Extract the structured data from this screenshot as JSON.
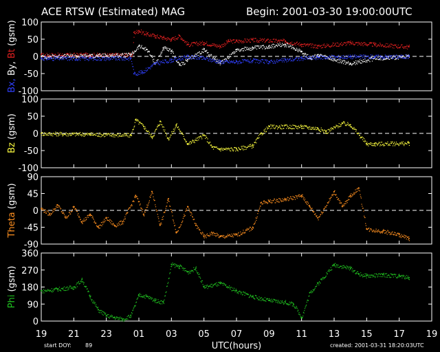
{
  "header": {
    "title": "ACE RTSW (Estimated) MAG",
    "begin": "Begin: 2001-03-30 19:00:00UTC"
  },
  "footer": {
    "start_doy_label": "start DOY:",
    "start_doy_value": "89",
    "created": "created: 2001-03-31 18:20:03UTC"
  },
  "colors": {
    "bx": "#3040ff",
    "by": "#ffffff",
    "bt": "#e02020",
    "bz": "#ffff40",
    "theta": "#ff9020",
    "phi": "#20c020",
    "axis": "#ffffff"
  },
  "chart_data": [
    {
      "type": "scatter",
      "panel": "B components",
      "ylabel": [
        "Bx,",
        "By,",
        "Bt",
        "(gsm)"
      ],
      "ylim": [
        -100,
        100
      ],
      "yticks": [
        "100",
        "50",
        "0",
        "-50",
        "-100"
      ],
      "ytick_values": [
        100,
        50,
        0,
        -50,
        -100
      ],
      "zero_dashed": true,
      "series": [
        {
          "key": "bt",
          "color_key": "bt",
          "x": [
            19,
            22,
            23.5,
            24.6,
            24.7,
            25.0,
            25.5,
            26.0,
            26.5,
            27.0,
            27.5,
            28.0,
            29.0,
            30.0,
            30.5,
            31.0,
            32.0,
            34.0,
            35.0,
            36.0,
            38.0,
            39.5,
            41.6
          ],
          "y": [
            5,
            5,
            5,
            5,
            70,
            75,
            65,
            60,
            55,
            50,
            60,
            35,
            40,
            30,
            45,
            45,
            48,
            45,
            35,
            30,
            40,
            35,
            28
          ]
        },
        {
          "key": "by",
          "color_key": "by",
          "x": [
            19,
            22,
            24.5,
            25.0,
            25.5,
            26.0,
            26.5,
            27.0,
            27.5,
            28.0,
            29.0,
            30.0,
            31.0,
            32.0,
            33.0,
            34.0,
            35.0,
            35.5,
            36.0,
            37.0,
            38.0,
            39.5,
            41.6
          ],
          "y": [
            0,
            2,
            5,
            30,
            20,
            -20,
            25,
            15,
            -25,
            -10,
            20,
            -20,
            20,
            25,
            30,
            35,
            15,
            -5,
            5,
            -10,
            -20,
            -5,
            0
          ]
        },
        {
          "key": "bx",
          "color_key": "bx",
          "x": [
            19,
            22,
            24.5,
            24.7,
            25.2,
            26.0,
            27.0,
            28.0,
            29.0,
            30.0,
            31.0,
            32.0,
            33.0,
            34.0,
            35.0,
            36.0,
            38.0,
            39.5,
            41.6
          ],
          "y": [
            -5,
            -5,
            -5,
            -50,
            -45,
            -20,
            -10,
            0,
            -5,
            -15,
            -15,
            -12,
            -15,
            -10,
            -5,
            -2,
            0,
            0,
            0
          ]
        }
      ]
    },
    {
      "type": "scatter",
      "panel": "Bz",
      "ylabel": [
        "Bz",
        "(gsm)"
      ],
      "ylim": [
        -100,
        100
      ],
      "yticks": [
        "100",
        "50",
        "0",
        "-50",
        "-100"
      ],
      "ytick_values": [
        100,
        50,
        0,
        -50,
        -100
      ],
      "zero_dashed": true,
      "series": [
        {
          "key": "bz",
          "color_key": "bz",
          "x": [
            19,
            22,
            24.5,
            24.8,
            25.3,
            25.8,
            26.3,
            26.8,
            27.3,
            28.0,
            29.0,
            29.5,
            30.0,
            31.0,
            32.0,
            32.5,
            33.0,
            35.0,
            36.0,
            36.5,
            37.5,
            38.0,
            39.0,
            39.5,
            41.6
          ],
          "y": [
            0,
            -2,
            -5,
            40,
            20,
            -10,
            35,
            -15,
            25,
            -30,
            -5,
            -40,
            -45,
            -45,
            -35,
            0,
            20,
            20,
            15,
            5,
            30,
            25,
            -30,
            -30,
            -28
          ]
        }
      ]
    },
    {
      "type": "scatter",
      "panel": "Theta",
      "ylabel": [
        "Theta",
        "(gsm)"
      ],
      "ylim": [
        -90,
        90
      ],
      "yticks": [
        "90",
        "45",
        "0",
        "-45",
        "-90"
      ],
      "ytick_values": [
        90,
        45,
        0,
        -45,
        -90
      ],
      "zero_dashed": true,
      "series": [
        {
          "key": "theta",
          "color_key": "theta",
          "x": [
            19,
            19.5,
            20.0,
            20.5,
            21.0,
            21.5,
            22.0,
            22.5,
            23.0,
            23.5,
            24.0,
            24.8,
            25.3,
            25.8,
            26.3,
            26.8,
            27.3,
            28.0,
            28.5,
            29.0,
            29.5,
            30.0,
            31.0,
            32.0,
            32.5,
            33.0,
            34.0,
            35.0,
            35.5,
            36.0,
            37.0,
            37.5,
            38.0,
            38.5,
            39.0,
            40.0,
            41.0,
            41.6
          ],
          "y": [
            5,
            -10,
            15,
            -20,
            10,
            -30,
            -10,
            -45,
            -20,
            -40,
            -30,
            40,
            -10,
            50,
            -40,
            30,
            -60,
            10,
            -40,
            -70,
            -60,
            -70,
            -65,
            -45,
            20,
            25,
            30,
            40,
            10,
            -20,
            50,
            10,
            40,
            60,
            -50,
            -55,
            -65,
            -75
          ]
        }
      ]
    },
    {
      "type": "scatter",
      "panel": "Phi",
      "ylabel": [
        "Phi",
        "(gsm)"
      ],
      "ylim": [
        0,
        360
      ],
      "yticks": [
        "360",
        "270",
        "180",
        "90",
        "0"
      ],
      "ytick_values": [
        360,
        270,
        180,
        90,
        0
      ],
      "zero_dashed": false,
      "series": [
        {
          "key": "phi",
          "color_key": "phi",
          "x": [
            19,
            20.0,
            21.0,
            21.5,
            22.0,
            22.5,
            23.0,
            23.5,
            24.0,
            24.5,
            25.0,
            25.5,
            26.0,
            26.5,
            27.0,
            27.5,
            28.0,
            28.5,
            29.0,
            30.0,
            31.0,
            32.0,
            33.0,
            34.0,
            34.5,
            35.0,
            35.5,
            36.0,
            37.0,
            38.0,
            38.5,
            39.0,
            40.0,
            41.0,
            41.6
          ],
          "y": [
            160,
            170,
            180,
            220,
            130,
            60,
            30,
            20,
            10,
            30,
            140,
            130,
            110,
            100,
            300,
            290,
            260,
            280,
            180,
            200,
            160,
            130,
            110,
            100,
            90,
            20,
            150,
            200,
            300,
            280,
            250,
            240,
            245,
            240,
            230
          ]
        }
      ]
    }
  ],
  "x_axis": {
    "label": "UTC(hours)",
    "range": [
      19,
      43
    ],
    "ticks": [
      "19",
      "21",
      "23",
      "01",
      "03",
      "05",
      "07",
      "09",
      "11",
      "13",
      "15",
      "17",
      "19"
    ],
    "tick_values": [
      19,
      21,
      23,
      25,
      27,
      29,
      31,
      33,
      35,
      37,
      39,
      41,
      43
    ]
  }
}
